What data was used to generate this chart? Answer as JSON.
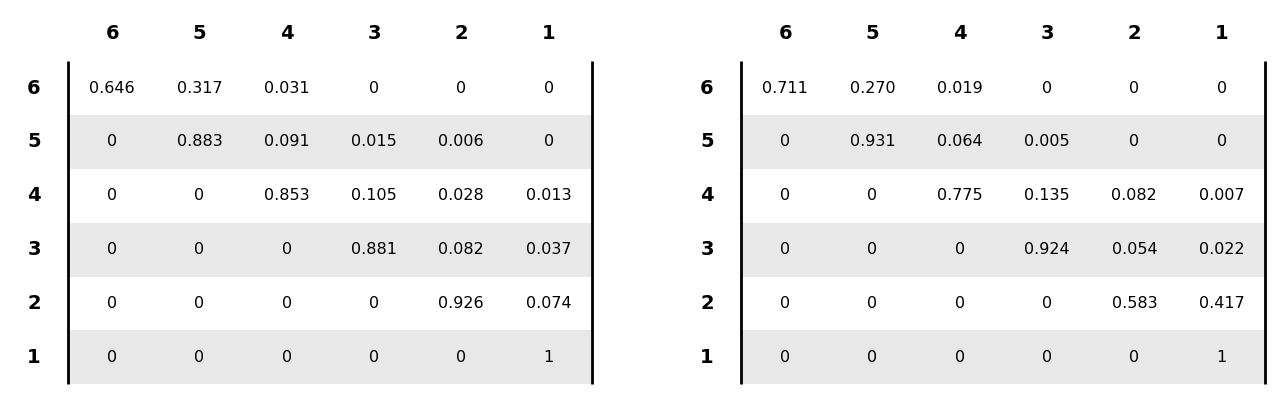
{
  "matrix1": {
    "row_labels": [
      "6",
      "5",
      "4",
      "3",
      "2",
      "1"
    ],
    "col_labels": [
      "6",
      "5",
      "4",
      "3",
      "2",
      "1"
    ],
    "data": [
      [
        "0.646",
        "0.317",
        "0.031",
        "0",
        "0",
        "0"
      ],
      [
        "0",
        "0.883",
        "0.091",
        "0.015",
        "0.006",
        "0"
      ],
      [
        "0",
        "0",
        "0.853",
        "0.105",
        "0.028",
        "0.013"
      ],
      [
        "0",
        "0",
        "0",
        "0.881",
        "0.082",
        "0.037"
      ],
      [
        "0",
        "0",
        "0",
        "0",
        "0.926",
        "0.074"
      ],
      [
        "0",
        "0",
        "0",
        "0",
        "0",
        "1"
      ]
    ]
  },
  "matrix2": {
    "row_labels": [
      "6",
      "5",
      "4",
      "3",
      "2",
      "1"
    ],
    "col_labels": [
      "6",
      "5",
      "4",
      "3",
      "2",
      "1"
    ],
    "data": [
      [
        "0.711",
        "0.270",
        "0.019",
        "0",
        "0",
        "0"
      ],
      [
        "0",
        "0.931",
        "0.064",
        "0.005",
        "0",
        "0"
      ],
      [
        "0",
        "0",
        "0.775",
        "0.135",
        "0.082",
        "0.007"
      ],
      [
        "0",
        "0",
        "0",
        "0.924",
        "0.054",
        "0.022"
      ],
      [
        "0",
        "0",
        "0",
        "0",
        "0.583",
        "0.417"
      ],
      [
        "0",
        "0",
        "0",
        "0",
        "0",
        "1"
      ]
    ]
  },
  "stripe_colors": [
    "#ffffff",
    "#e8e8e8"
  ],
  "font_size_data": 11.5,
  "font_size_header": 14,
  "font_size_row_label": 14,
  "line_color": "#000000",
  "line_width": 2.0,
  "bg_color": "#ffffff"
}
